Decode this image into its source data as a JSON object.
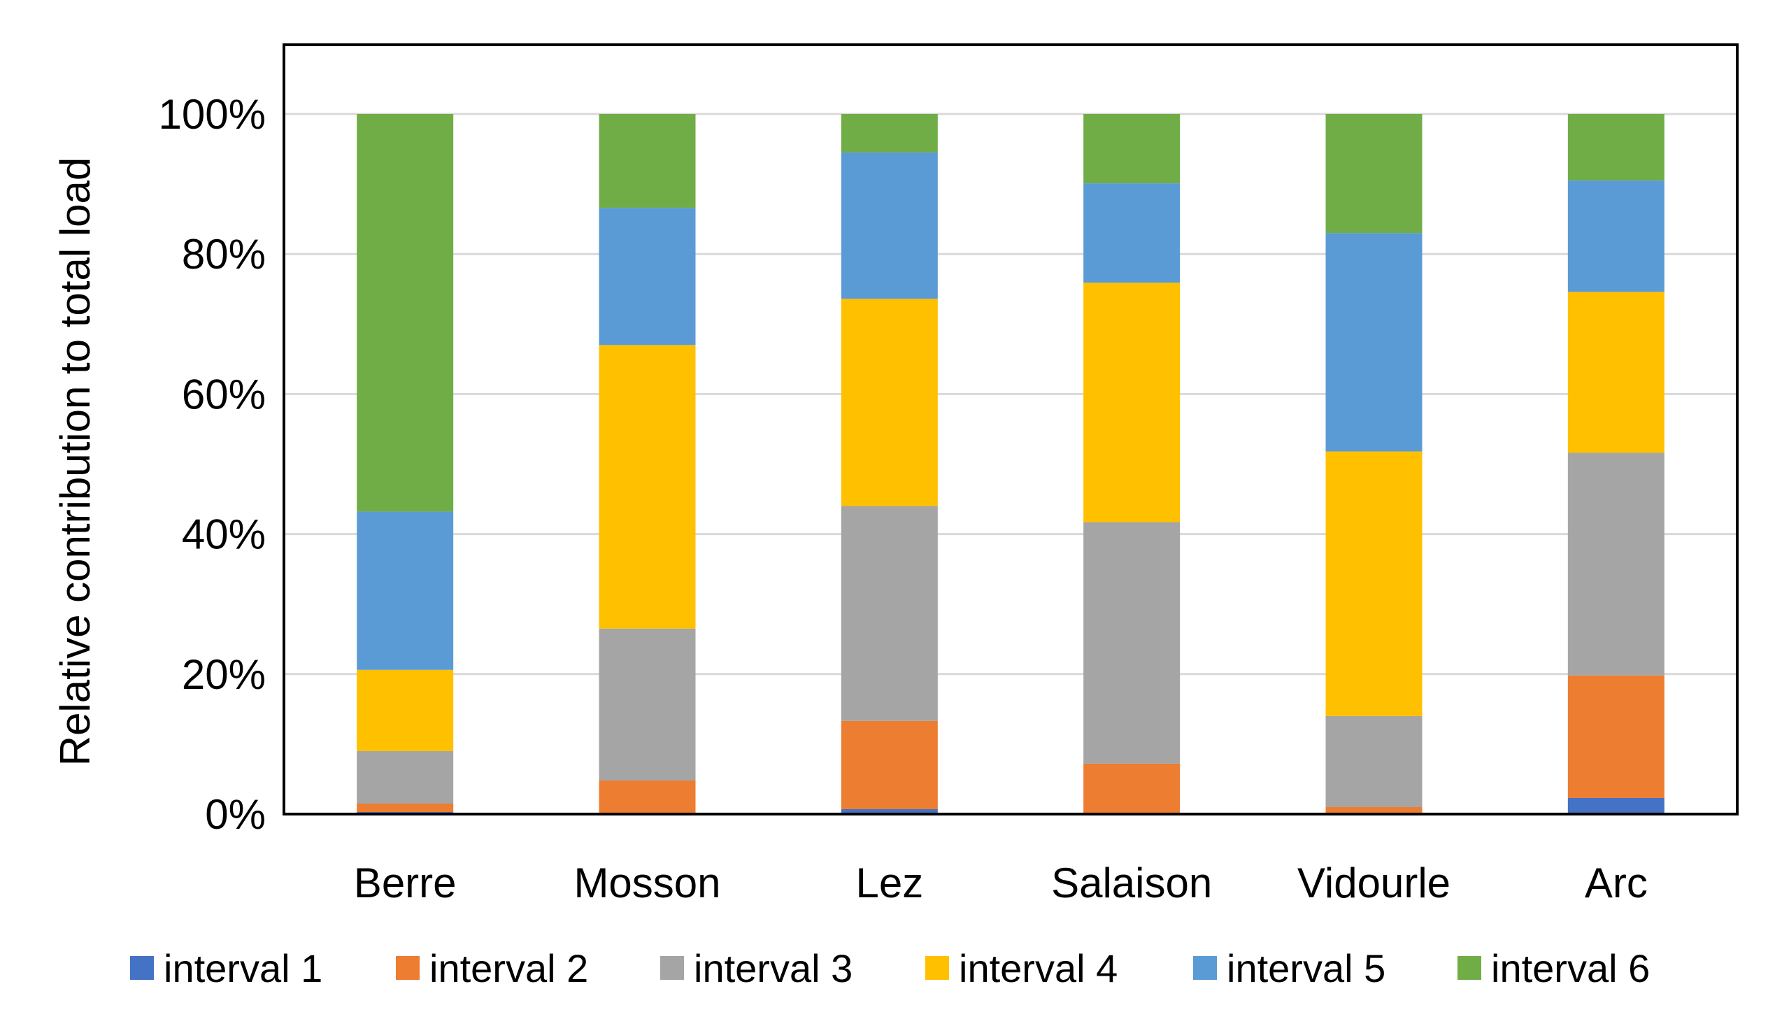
{
  "chart_data": {
    "type": "bar",
    "stacked": true,
    "percent_stacked": true,
    "title": "",
    "xlabel": "",
    "ylabel": "Relative contribution to total load",
    "ylim": [
      0,
      100
    ],
    "yticks": [
      "0%",
      "20%",
      "40%",
      "60%",
      "80%",
      "100%"
    ],
    "ytick_values": [
      0,
      20,
      40,
      60,
      80,
      100
    ],
    "grid": true,
    "legend_position": "bottom",
    "categories": [
      "Berre",
      "Mosson",
      "Lez",
      "Salaison",
      "Vidourle",
      "Arc"
    ],
    "series": [
      {
        "name": "interval 1",
        "color": "#4472C4",
        "values": [
          0.3,
          0.2,
          0.7,
          0.2,
          0.2,
          2.3
        ]
      },
      {
        "name": "interval 2",
        "color": "#ED7D31",
        "values": [
          1.2,
          4.6,
          12.6,
          7.0,
          0.8,
          17.5
        ]
      },
      {
        "name": "interval 3",
        "color": "#A5A5A5",
        "values": [
          7.5,
          21.7,
          30.7,
          34.5,
          13.0,
          31.8
        ]
      },
      {
        "name": "interval 4",
        "color": "#FFC000",
        "values": [
          11.6,
          40.5,
          29.6,
          34.2,
          37.8,
          23.0
        ]
      },
      {
        "name": "interval 5",
        "color": "#5B9BD5",
        "values": [
          22.6,
          19.6,
          20.9,
          14.2,
          31.2,
          15.9
        ]
      },
      {
        "name": "interval 6",
        "color": "#70AD47",
        "values": [
          56.8,
          13.4,
          5.5,
          9.9,
          17.0,
          9.5
        ]
      }
    ]
  }
}
